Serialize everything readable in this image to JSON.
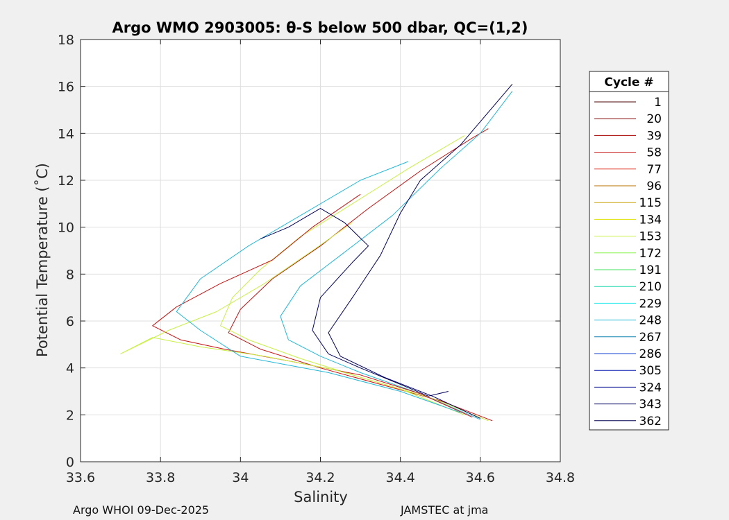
{
  "chart_data": {
    "type": "line",
    "title": "Argo WMO 2903005: θ-S below 500 dbar,  QC=(1,2)",
    "xlabel": "Salinity",
    "ylabel": "Potential Temperature (˚C)",
    "xlim": [
      33.6,
      34.8
    ],
    "ylim": [
      0,
      18
    ],
    "xticks": [
      "33.6",
      "33.8",
      "34",
      "34.2",
      "34.4",
      "34.6",
      "34.8"
    ],
    "yticks": [
      "0",
      "2",
      "4",
      "6",
      "8",
      "10",
      "12",
      "14",
      "16",
      "18"
    ],
    "grid": true,
    "legend": {
      "title": "Cycle #",
      "placement": "right",
      "entries": [
        "1",
        "20",
        "39",
        "58",
        "77",
        "96",
        "115",
        "134",
        "153",
        "172",
        "191",
        "210",
        "229",
        "248",
        "267",
        "286",
        "305",
        "324",
        "343",
        "362"
      ],
      "colors": [
        "#4a0000",
        "#800000",
        "#a80000",
        "#c81010",
        "#e03020",
        "#b87000",
        "#c8a000",
        "#e0e000",
        "#c8f040",
        "#80f040",
        "#40e060",
        "#20d8b0",
        "#20e8e8",
        "#20b8d8",
        "#1080b0",
        "#1040d0",
        "#0818b0",
        "#000890",
        "#000060",
        "#000050"
      ]
    },
    "series": [
      {
        "values": [
          [
            34.63,
            1.75
          ],
          [
            34.5,
            2.6
          ],
          [
            34.35,
            3.3
          ],
          [
            34.2,
            4.0
          ],
          [
            34.05,
            4.8
          ],
          [
            33.97,
            5.5
          ],
          [
            34.0,
            6.5
          ],
          [
            34.08,
            7.8
          ],
          [
            34.2,
            9.2
          ],
          [
            34.32,
            10.8
          ],
          [
            34.45,
            12.4
          ],
          [
            34.58,
            13.8
          ],
          [
            34.62,
            14.2
          ]
        ]
      },
      {
        "values": [
          [
            34.62,
            1.75
          ],
          [
            34.48,
            2.7
          ],
          [
            34.3,
            3.6
          ],
          [
            34.15,
            4.4
          ],
          [
            34.02,
            5.2
          ],
          [
            33.95,
            5.8
          ],
          [
            33.98,
            7.0
          ],
          [
            34.05,
            8.2
          ],
          [
            34.15,
            9.6
          ],
          [
            34.28,
            11.0
          ],
          [
            34.42,
            12.5
          ],
          [
            34.56,
            13.9
          ]
        ]
      },
      {
        "values": [
          [
            34.6,
            1.8
          ],
          [
            34.45,
            2.9
          ],
          [
            34.3,
            3.8
          ],
          [
            34.2,
            4.5
          ],
          [
            34.12,
            5.2
          ],
          [
            34.1,
            6.2
          ],
          [
            34.15,
            7.5
          ],
          [
            34.25,
            8.8
          ],
          [
            34.38,
            10.5
          ],
          [
            34.5,
            12.5
          ],
          [
            34.6,
            14.0
          ],
          [
            34.68,
            15.8
          ]
        ]
      },
      {
        "values": [
          [
            34.6,
            1.85
          ],
          [
            34.48,
            2.8
          ],
          [
            34.36,
            3.6
          ],
          [
            34.25,
            4.5
          ],
          [
            34.22,
            5.5
          ],
          [
            34.28,
            7.0
          ],
          [
            34.35,
            8.8
          ],
          [
            34.4,
            10.6
          ],
          [
            34.45,
            12.0
          ],
          [
            34.55,
            13.5
          ],
          [
            34.68,
            16.1
          ]
        ]
      },
      {
        "values": [
          [
            34.58,
            1.9
          ],
          [
            34.45,
            2.9
          ],
          [
            34.3,
            3.7
          ],
          [
            34.12,
            4.3
          ],
          [
            33.96,
            4.8
          ],
          [
            33.85,
            5.2
          ],
          [
            33.78,
            5.8
          ],
          [
            33.84,
            6.6
          ],
          [
            33.95,
            7.6
          ],
          [
            34.08,
            8.6
          ],
          [
            34.18,
            10.0
          ],
          [
            34.3,
            11.4
          ]
        ]
      },
      {
        "values": [
          [
            34.56,
            2.0
          ],
          [
            34.4,
            3.1
          ],
          [
            34.24,
            3.9
          ],
          [
            34.06,
            4.5
          ],
          [
            33.9,
            4.9
          ],
          [
            33.78,
            5.3
          ],
          [
            33.7,
            4.6
          ],
          [
            33.82,
            5.6
          ],
          [
            33.94,
            6.4
          ],
          [
            34.06,
            7.6
          ],
          [
            34.18,
            9.0
          ],
          [
            34.28,
            10.2
          ]
        ]
      },
      {
        "values": [
          [
            34.55,
            2.1
          ],
          [
            34.4,
            3.0
          ],
          [
            34.22,
            3.8
          ],
          [
            34.0,
            4.5
          ],
          [
            33.9,
            5.6
          ],
          [
            33.84,
            6.4
          ],
          [
            33.9,
            7.8
          ],
          [
            34.02,
            9.2
          ],
          [
            34.16,
            10.6
          ],
          [
            34.3,
            12.0
          ],
          [
            34.42,
            12.8
          ]
        ]
      },
      {
        "values": [
          [
            34.52,
            3.0
          ],
          [
            34.47,
            2.8
          ],
          [
            34.4,
            3.3
          ],
          [
            34.3,
            4.0
          ],
          [
            34.22,
            4.6
          ],
          [
            34.18,
            5.6
          ],
          [
            34.2,
            7.0
          ],
          [
            34.28,
            8.5
          ],
          [
            34.32,
            9.2
          ],
          [
            34.26,
            10.2
          ],
          [
            34.2,
            10.8
          ],
          [
            34.12,
            10.0
          ],
          [
            34.05,
            9.5
          ]
        ]
      }
    ]
  },
  "footer": {
    "left": "Argo WHOI 09-Dec-2025",
    "right": "JAMSTEC at jma"
  }
}
